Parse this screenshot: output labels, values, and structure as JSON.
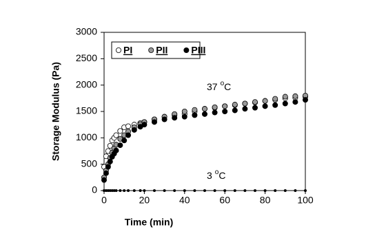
{
  "chart_data": {
    "type": "scatter",
    "xlabel": "Time (min)",
    "ylabel": "Storage Modulus (Pa)",
    "x": [
      0,
      1,
      2,
      3,
      4,
      5,
      6,
      8,
      10,
      12,
      15,
      18,
      20,
      25,
      30,
      35,
      40,
      45,
      50,
      55,
      60,
      65,
      70,
      75,
      80,
      85,
      90,
      95,
      100
    ],
    "series": [
      {
        "name": "PI",
        "color": "#ffffff",
        "values": [
          450,
          650,
          750,
          850,
          950,
          1000,
          1050,
          1130,
          1200,
          1220,
          1250,
          1280,
          1300,
          1350,
          1400,
          1430,
          1450,
          1500,
          1550,
          1570,
          1600,
          1620,
          1650,
          1670,
          1700,
          1720,
          1750,
          1760,
          1780
        ]
      },
      {
        "name": "PII",
        "color": "#999999",
        "values": [
          250,
          380,
          500,
          620,
          720,
          800,
          870,
          980,
          1050,
          1120,
          1200,
          1260,
          1300,
          1350,
          1400,
          1450,
          1500,
          1530,
          1550,
          1580,
          1600,
          1630,
          1650,
          1680,
          1700,
          1740,
          1780,
          1790,
          1800
        ]
      },
      {
        "name": "PIII",
        "color": "#000000",
        "values": [
          200,
          330,
          450,
          550,
          640,
          700,
          760,
          860,
          950,
          1050,
          1150,
          1210,
          1250,
          1300,
          1350,
          1380,
          1400,
          1430,
          1450,
          1480,
          1500,
          1520,
          1550,
          1570,
          1600,
          1620,
          1650,
          1680,
          1720
        ]
      },
      {
        "color": "#000000",
        "values": [
          0,
          0,
          0,
          0,
          0,
          0,
          0,
          0,
          0,
          0,
          0,
          0,
          0,
          0,
          0,
          0,
          0,
          0,
          0,
          0,
          0,
          0,
          0,
          0,
          0,
          0,
          0,
          0,
          0
        ]
      }
    ],
    "annotations": [
      {
        "number": "37",
        "sup": "o",
        "unit": "C"
      },
      {
        "number": "3",
        "sup": "o",
        "unit": "C"
      }
    ],
    "xlim": [
      0,
      100
    ],
    "xticks": [
      0,
      20,
      40,
      60,
      80,
      100
    ],
    "ylim": [
      0,
      3000
    ],
    "yticks": [
      0,
      500,
      1000,
      1500,
      2000,
      2500,
      3000
    ],
    "grid": false,
    "legend": "upper left"
  }
}
